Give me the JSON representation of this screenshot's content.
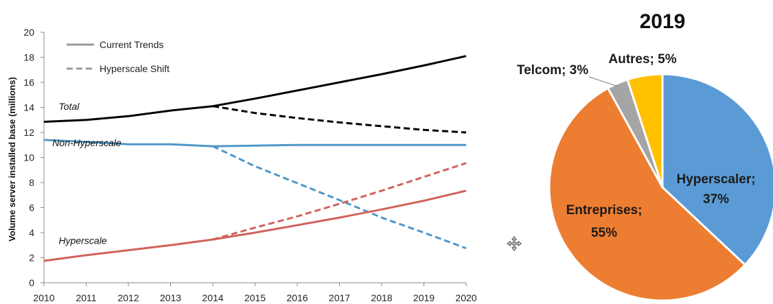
{
  "chart_data": [
    {
      "type": "line",
      "title": "",
      "xlabel": "",
      "ylabel": "Volume server installed base (millions)",
      "x": [
        2010,
        2011,
        2012,
        2013,
        2014,
        2015,
        2016,
        2017,
        2018,
        2019,
        2020
      ],
      "xlim": [
        2010,
        2020
      ],
      "ylim": [
        0,
        20
      ],
      "yticks": [
        0,
        2,
        4,
        6,
        8,
        10,
        12,
        14,
        16,
        18,
        20
      ],
      "grid": false,
      "legend_position": "top-left",
      "legend": [
        {
          "label": "Current Trends",
          "style": "solid",
          "color": "#999999"
        },
        {
          "label": "Hyperscale Shift",
          "style": "dashed",
          "color": "#999999"
        }
      ],
      "series": [
        {
          "name": "Total",
          "scenario": "Current Trends",
          "style": "solid",
          "color": "#000000",
          "x": [
            2010,
            2011,
            2012,
            2013,
            2014,
            2015,
            2016,
            2017,
            2018,
            2019,
            2020
          ],
          "values": [
            12.85,
            13.0,
            13.3,
            13.75,
            14.1,
            14.7,
            15.35,
            16.0,
            16.65,
            17.35,
            18.1
          ]
        },
        {
          "name": "Total",
          "scenario": "Hyperscale Shift",
          "style": "dashed",
          "color": "#000000",
          "x": [
            2014,
            2015,
            2016,
            2017,
            2018,
            2019,
            2020
          ],
          "values": [
            14.1,
            13.55,
            13.15,
            12.8,
            12.5,
            12.2,
            12.0
          ]
        },
        {
          "name": "Non-Hyperscale",
          "scenario": "Current Trends",
          "style": "solid",
          "color": "#4f97c9",
          "x": [
            2010,
            2011,
            2012,
            2013,
            2014,
            2015,
            2016,
            2017,
            2018,
            2019,
            2020
          ],
          "values": [
            11.4,
            11.25,
            11.05,
            11.05,
            10.9,
            10.95,
            11.0,
            11.0,
            11.0,
            11.0,
            11.0
          ]
        },
        {
          "name": "Non-Hyperscale",
          "scenario": "Hyperscale Shift",
          "style": "dashed",
          "color": "#4f97c9",
          "x": [
            2014,
            2015,
            2016,
            2017,
            2018,
            2019,
            2020
          ],
          "values": [
            10.9,
            9.3,
            7.95,
            6.6,
            5.2,
            4.0,
            2.75
          ]
        },
        {
          "name": "Hyperscale",
          "scenario": "Current Trends",
          "style": "solid",
          "color": "#d0625b",
          "x": [
            2010,
            2011,
            2012,
            2013,
            2014,
            2015,
            2016,
            2017,
            2018,
            2019,
            2020
          ],
          "values": [
            1.75,
            2.2,
            2.6,
            3.0,
            3.45,
            4.0,
            4.6,
            5.2,
            5.85,
            6.55,
            7.35
          ]
        },
        {
          "name": "Hyperscale",
          "scenario": "Hyperscale Shift",
          "style": "dashed",
          "color": "#d0625b",
          "x": [
            2014,
            2015,
            2016,
            2017,
            2018,
            2019,
            2020
          ],
          "values": [
            3.45,
            4.4,
            5.3,
            6.3,
            7.35,
            8.45,
            9.55
          ]
        }
      ],
      "annotations": [
        {
          "text": "Total",
          "x": 2010.35,
          "y": 13.8
        },
        {
          "text": "Non-Hyperscale",
          "x": 2010.2,
          "y": 10.9
        },
        {
          "text": "Hyperscale",
          "x": 2010.35,
          "y": 3.1
        }
      ]
    },
    {
      "type": "pie",
      "title": "2019",
      "start_angle_deg": 0,
      "direction": "clockwise",
      "slices": [
        {
          "category": "Hyperscaler",
          "value": 37,
          "label": "Hyperscaler;",
          "value_label": "37%",
          "color": "#5b9bd5"
        },
        {
          "category": "Entreprises",
          "value": 55,
          "label": "Entreprises;",
          "value_label": "55%",
          "color": "#ed7d31"
        },
        {
          "category": "Telcom",
          "value": 3,
          "label": "Telcom; 3%",
          "color": "#a5a5a5"
        },
        {
          "category": "Autres",
          "value": 5,
          "label": "Autres; 5%",
          "color": "#ffc000"
        }
      ]
    }
  ],
  "icons": {
    "cursor": "move-cursor-icon"
  }
}
